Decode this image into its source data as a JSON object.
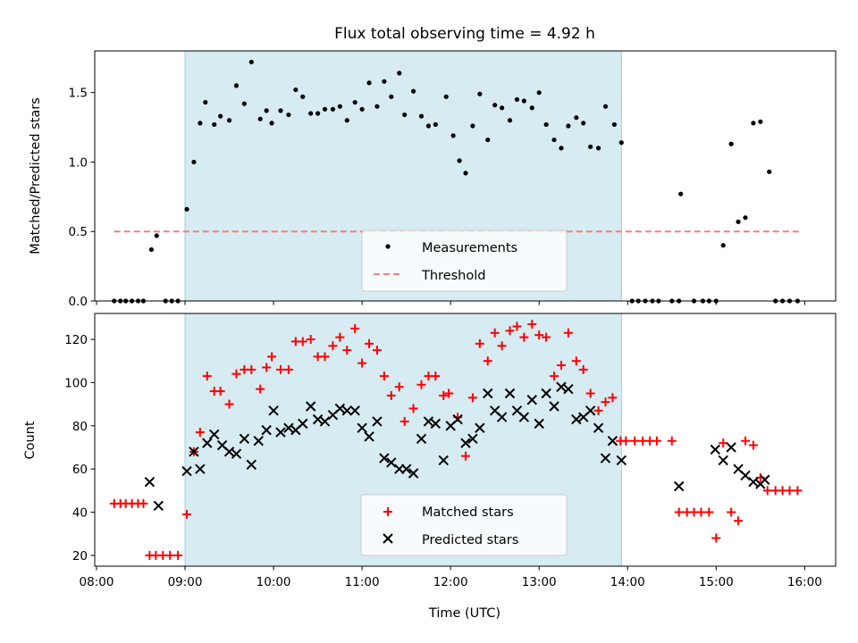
{
  "title": "Flux total observing time = 4.92 h",
  "chart_data": [
    {
      "type": "scatter",
      "ylabel": "Matched/Predicted stars",
      "xlabel": "",
      "xlim": [
        7.98,
        16.35
      ],
      "ylim": [
        0,
        1.8
      ],
      "yticks": [
        0,
        0.5,
        1,
        1.5
      ],
      "yticklabels": [
        "0.0",
        "0.5",
        "1.0",
        "1.5"
      ],
      "shaded_span": [
        9.0,
        13.93
      ],
      "threshold": {
        "name": "Threshold",
        "value": 0.5,
        "x_range": [
          8.2,
          15.97
        ],
        "color": "#f08080"
      },
      "legend": [
        "Measurements",
        "Threshold"
      ],
      "series": [
        {
          "name": "Measurements",
          "color": "#000000",
          "x": [
            8.2,
            8.27,
            8.33,
            8.4,
            8.47,
            8.53,
            8.62,
            8.68,
            8.78,
            8.85,
            8.92,
            9.02,
            9.1,
            9.17,
            9.23,
            9.33,
            9.4,
            9.5,
            9.58,
            9.67,
            9.75,
            9.85,
            9.92,
            9.98,
            10.08,
            10.17,
            10.25,
            10.33,
            10.42,
            10.5,
            10.58,
            10.67,
            10.75,
            10.83,
            10.92,
            11.0,
            11.08,
            11.17,
            11.25,
            11.33,
            11.42,
            11.48,
            11.58,
            11.67,
            11.75,
            11.83,
            11.95,
            12.03,
            12.1,
            12.17,
            12.25,
            12.33,
            12.42,
            12.5,
            12.58,
            12.67,
            12.75,
            12.83,
            12.92,
            13.0,
            13.08,
            13.17,
            13.25,
            13.33,
            13.42,
            13.5,
            13.58,
            13.67,
            13.75,
            13.85,
            13.93,
            14.05,
            14.12,
            14.2,
            14.28,
            14.35,
            14.5,
            14.58,
            14.6,
            14.75,
            14.85,
            14.92,
            15.0,
            15.08,
            15.17,
            15.25,
            15.33,
            15.42,
            15.5,
            15.6,
            15.67,
            15.75,
            15.83,
            15.92
          ],
          "y": [
            0,
            0,
            0,
            0,
            0,
            0,
            0.37,
            0.47,
            0,
            0,
            0,
            0.66,
            1.0,
            1.28,
            1.43,
            1.27,
            1.33,
            1.3,
            1.55,
            1.42,
            1.72,
            1.31,
            1.37,
            1.28,
            1.37,
            1.34,
            1.52,
            1.47,
            1.35,
            1.35,
            1.38,
            1.38,
            1.4,
            1.3,
            1.43,
            1.38,
            1.57,
            1.4,
            1.58,
            1.47,
            1.64,
            1.34,
            1.51,
            1.33,
            1.26,
            1.27,
            1.47,
            1.19,
            1.01,
            0.92,
            1.26,
            1.49,
            1.16,
            1.41,
            1.39,
            1.3,
            1.45,
            1.44,
            1.39,
            1.5,
            1.27,
            1.16,
            1.1,
            1.26,
            1.32,
            1.28,
            1.11,
            1.1,
            1.4,
            1.27,
            1.14,
            0,
            0,
            0,
            0,
            0,
            0,
            0,
            0.77,
            0,
            0,
            0,
            0,
            0.4,
            1.13,
            0.57,
            0.6,
            1.28,
            1.29,
            0.93,
            0,
            0,
            0,
            0
          ]
        }
      ]
    },
    {
      "type": "scatter",
      "ylabel": "Count",
      "xlabel": "Time (UTC)",
      "xlim": [
        7.98,
        16.35
      ],
      "ylim": [
        15,
        132
      ],
      "yticks": [
        20,
        40,
        60,
        80,
        100,
        120
      ],
      "yticklabels": [
        "20",
        "40",
        "60",
        "80",
        "100",
        "120"
      ],
      "xticks": [
        8,
        9,
        10,
        11,
        12,
        13,
        14,
        15,
        16
      ],
      "xticklabels": [
        "08:00",
        "09:00",
        "10:00",
        "11:00",
        "12:00",
        "13:00",
        "14:00",
        "15:00",
        "16:00"
      ],
      "shaded_span": [
        9.0,
        13.93
      ],
      "legend": [
        "Matched stars",
        "Predicted stars"
      ],
      "series": [
        {
          "name": "Matched stars",
          "marker": "+",
          "color": "#ff0000",
          "x": [
            8.2,
            8.27,
            8.33,
            8.4,
            8.47,
            8.53,
            8.6,
            8.67,
            8.75,
            8.83,
            8.92,
            9.02,
            9.1,
            9.17,
            9.25,
            9.33,
            9.4,
            9.5,
            9.58,
            9.67,
            9.75,
            9.85,
            9.92,
            9.98,
            10.08,
            10.17,
            10.25,
            10.33,
            10.42,
            10.5,
            10.58,
            10.67,
            10.75,
            10.83,
            10.92,
            11.0,
            11.08,
            11.17,
            11.25,
            11.33,
            11.42,
            11.48,
            11.58,
            11.67,
            11.75,
            11.83,
            11.92,
            11.98,
            12.08,
            12.17,
            12.25,
            12.33,
            12.42,
            12.5,
            12.58,
            12.67,
            12.75,
            12.83,
            12.92,
            13.0,
            13.08,
            13.17,
            13.25,
            13.33,
            13.42,
            13.5,
            13.58,
            13.67,
            13.75,
            13.83,
            13.92,
            13.98,
            14.08,
            14.17,
            14.25,
            14.33,
            14.5,
            14.58,
            14.67,
            14.75,
            14.83,
            14.92,
            15.0,
            15.08,
            15.17,
            15.25,
            15.33,
            15.42,
            15.5,
            15.58,
            15.67,
            15.75,
            15.83,
            15.92
          ],
          "y": [
            44,
            44,
            44,
            44,
            44,
            44,
            20,
            20,
            20,
            20,
            20,
            39,
            68,
            77,
            103,
            96,
            96,
            90,
            104,
            106,
            106,
            97,
            107,
            112,
            106,
            106,
            119,
            119,
            120,
            112,
            112,
            117,
            121,
            115,
            125,
            109,
            118,
            115,
            103,
            94,
            98,
            82,
            88,
            99,
            103,
            103,
            94,
            95,
            84,
            66,
            93,
            118,
            110,
            123,
            117,
            124,
            126,
            121,
            127,
            122,
            121,
            103,
            108,
            123,
            110,
            106,
            95,
            87,
            91,
            93,
            73,
            73,
            73,
            73,
            73,
            73,
            73,
            40,
            40,
            40,
            40,
            40,
            28,
            72,
            40,
            36,
            73,
            71,
            56,
            50,
            50,
            50,
            50,
            50
          ]
        },
        {
          "name": "Predicted stars",
          "marker": "x",
          "color": "#000000",
          "x": [
            8.6,
            8.7,
            9.02,
            9.1,
            9.17,
            9.25,
            9.33,
            9.42,
            9.5,
            9.58,
            9.67,
            9.75,
            9.83,
            9.92,
            10.0,
            10.08,
            10.17,
            10.25,
            10.33,
            10.42,
            10.5,
            10.58,
            10.67,
            10.75,
            10.83,
            10.92,
            11.0,
            11.08,
            11.17,
            11.25,
            11.33,
            11.42,
            11.5,
            11.58,
            11.67,
            11.75,
            11.83,
            11.92,
            12.0,
            12.08,
            12.17,
            12.25,
            12.33,
            12.42,
            12.5,
            12.58,
            12.67,
            12.75,
            12.83,
            12.92,
            13.0,
            13.08,
            13.17,
            13.25,
            13.33,
            13.42,
            13.5,
            13.58,
            13.67,
            13.75,
            13.83,
            13.93,
            14.58,
            14.99,
            15.08,
            15.17,
            15.25,
            15.33,
            15.42,
            15.5,
            15.55
          ],
          "y": [
            54,
            43,
            59,
            68,
            60,
            72,
            76,
            71,
            68,
            67,
            74,
            62,
            73,
            78,
            87,
            77,
            79,
            78,
            81,
            89,
            83,
            82,
            85,
            88,
            87,
            87,
            79,
            75,
            82,
            65,
            63,
            60,
            60,
            58,
            74,
            82,
            81,
            64,
            80,
            83,
            72,
            74,
            79,
            95,
            87,
            84,
            95,
            87,
            84,
            92,
            81,
            95,
            89,
            98,
            97,
            83,
            84,
            87,
            79,
            65,
            73,
            64,
            52,
            69,
            64,
            70,
            60,
            57,
            54,
            53,
            55
          ]
        }
      ]
    }
  ]
}
